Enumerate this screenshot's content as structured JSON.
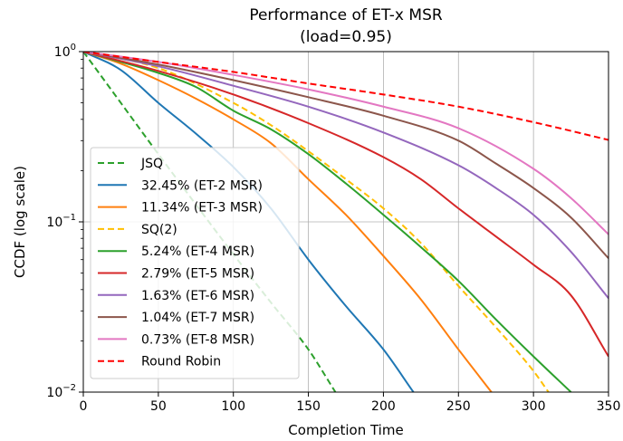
{
  "chart_data": {
    "type": "line",
    "title": "Performance of ET-x MSR",
    "subtitle": "(load=0.95)",
    "xlabel": "Completion Time",
    "ylabel": "CCDF (log scale)",
    "xlim": [
      0,
      350
    ],
    "ylim": [
      0.01,
      1
    ],
    "yscale": "log",
    "grid": true,
    "legend_position": "lower-left",
    "x_ticks": [
      "0",
      "50",
      "100",
      "150",
      "200",
      "250",
      "300",
      "350"
    ],
    "y_ticks": [
      {
        "value": 1,
        "base": "10",
        "exp": "0"
      },
      {
        "value": 0.1,
        "base": "10",
        "exp": "−1"
      },
      {
        "value": 0.01,
        "base": "10",
        "exp": "−2"
      }
    ],
    "series": [
      {
        "name": "JSQ",
        "color": "#2ca02c",
        "dash": true,
        "points": [
          [
            0,
            1.0
          ],
          [
            25,
            0.5
          ],
          [
            50,
            0.25
          ],
          [
            100,
            0.0646
          ],
          [
            125,
            0.0336
          ],
          [
            150,
            0.0178
          ],
          [
            168,
            0.01
          ]
        ]
      },
      {
        "name": "32.45% (ET-2 MSR)",
        "color": "#1f77b4",
        "dash": false,
        "points": [
          [
            0,
            1.0
          ],
          [
            25,
            0.78
          ],
          [
            50,
            0.5
          ],
          [
            75,
            0.33
          ],
          [
            100,
            0.21
          ],
          [
            125,
            0.12
          ],
          [
            150,
            0.06
          ],
          [
            175,
            0.032
          ],
          [
            200,
            0.0178
          ],
          [
            220,
            0.01
          ]
        ]
      },
      {
        "name": "11.34% (ET-3 MSR)",
        "color": "#ff7f0e",
        "dash": false,
        "points": [
          [
            0,
            1.0
          ],
          [
            25,
            0.85
          ],
          [
            50,
            0.68
          ],
          [
            75,
            0.53
          ],
          [
            100,
            0.4
          ],
          [
            125,
            0.29
          ],
          [
            150,
            0.178
          ],
          [
            175,
            0.11
          ],
          [
            200,
            0.063
          ],
          [
            225,
            0.035
          ],
          [
            250,
            0.0178
          ],
          [
            272,
            0.01
          ]
        ]
      },
      {
        "name": "SQ(2)",
        "color": "#ffbf00",
        "dash": true,
        "points": [
          [
            0,
            1.0
          ],
          [
            50,
            0.8
          ],
          [
            100,
            0.5
          ],
          [
            125,
            0.37
          ],
          [
            150,
            0.26
          ],
          [
            175,
            0.178
          ],
          [
            200,
            0.12
          ],
          [
            225,
            0.075
          ],
          [
            250,
            0.042
          ],
          [
            275,
            0.024
          ],
          [
            300,
            0.0133
          ],
          [
            310,
            0.01
          ]
        ]
      },
      {
        "name": "5.24% (ET-4 MSR)",
        "color": "#2ca02c",
        "dash": false,
        "points": [
          [
            0,
            1.0
          ],
          [
            50,
            0.75
          ],
          [
            75,
            0.62
          ],
          [
            100,
            0.45
          ],
          [
            125,
            0.35
          ],
          [
            150,
            0.25
          ],
          [
            175,
            0.168
          ],
          [
            200,
            0.11
          ],
          [
            225,
            0.071
          ],
          [
            250,
            0.045
          ],
          [
            275,
            0.0267
          ],
          [
            300,
            0.0162
          ],
          [
            325,
            0.01
          ]
        ]
      },
      {
        "name": "2.79% (ET-5 MSR)",
        "color": "#d62728",
        "dash": false,
        "points": [
          [
            0,
            1.0
          ],
          [
            50,
            0.77
          ],
          [
            100,
            0.56
          ],
          [
            150,
            0.38
          ],
          [
            200,
            0.24
          ],
          [
            225,
            0.178
          ],
          [
            250,
            0.12
          ],
          [
            275,
            0.082
          ],
          [
            300,
            0.056
          ],
          [
            325,
            0.037
          ],
          [
            350,
            0.0162
          ]
        ]
      },
      {
        "name": "1.63% (ET-6 MSR)",
        "color": "#9467bd",
        "dash": false,
        "points": [
          [
            0,
            1.0
          ],
          [
            50,
            0.82
          ],
          [
            100,
            0.63
          ],
          [
            150,
            0.475
          ],
          [
            200,
            0.335
          ],
          [
            250,
            0.215
          ],
          [
            275,
            0.158
          ],
          [
            300,
            0.11
          ],
          [
            325,
            0.0667
          ],
          [
            350,
            0.0356
          ]
        ]
      },
      {
        "name": "1.04% (ET-7 MSR)",
        "color": "#8c564b",
        "dash": false,
        "points": [
          [
            0,
            1.0
          ],
          [
            50,
            0.84
          ],
          [
            100,
            0.68
          ],
          [
            150,
            0.54
          ],
          [
            200,
            0.42
          ],
          [
            250,
            0.3
          ],
          [
            275,
            0.22
          ],
          [
            300,
            0.158
          ],
          [
            325,
            0.106
          ],
          [
            350,
            0.0611
          ]
        ]
      },
      {
        "name": "0.73% (ET-8 MSR)",
        "color": "#e377c2",
        "dash": false,
        "points": [
          [
            0,
            1.0
          ],
          [
            50,
            0.87
          ],
          [
            100,
            0.73
          ],
          [
            150,
            0.6
          ],
          [
            200,
            0.475
          ],
          [
            250,
            0.355
          ],
          [
            300,
            0.205
          ],
          [
            325,
            0.138
          ],
          [
            350,
            0.0845
          ]
        ]
      },
      {
        "name": "Round Robin",
        "color": "#ff0000",
        "dash": true,
        "points": [
          [
            0,
            1.0
          ],
          [
            50,
            0.87
          ],
          [
            100,
            0.76
          ],
          [
            150,
            0.65
          ],
          [
            200,
            0.56
          ],
          [
            250,
            0.475
          ],
          [
            300,
            0.385
          ],
          [
            350,
            0.303
          ]
        ]
      }
    ]
  }
}
